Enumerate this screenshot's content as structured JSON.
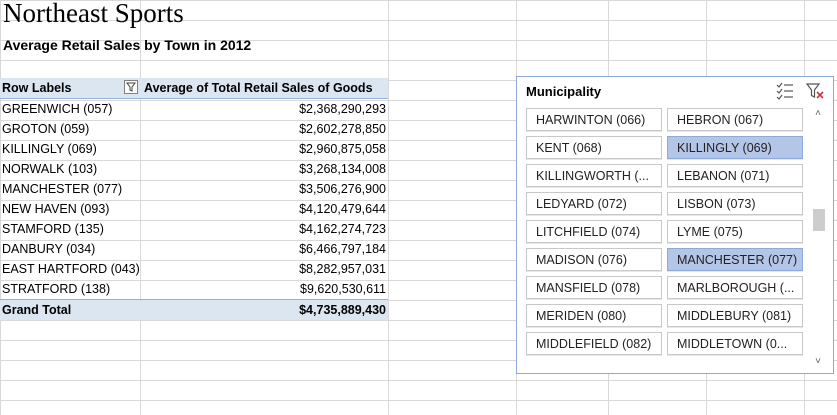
{
  "sheet": {
    "title": "Northeast Sports",
    "subtitle": "Average Retail Sales by Town in 2012"
  },
  "pivot": {
    "row_labels_header": "Row Labels",
    "value_header": "Average of Total Retail Sales of Goods",
    "rows": [
      {
        "label": "GREENWICH (057)",
        "value": "$2,368,290,293"
      },
      {
        "label": "GROTON (059)",
        "value": "$2,602,278,850"
      },
      {
        "label": "KILLINGLY (069)",
        "value": "$2,960,875,058"
      },
      {
        "label": "NORWALK (103)",
        "value": "$3,268,134,008"
      },
      {
        "label": "MANCHESTER (077)",
        "value": "$3,506,276,900"
      },
      {
        "label": "NEW HAVEN (093)",
        "value": "$4,120,479,644"
      },
      {
        "label": "STAMFORD (135)",
        "value": "$4,162,274,723"
      },
      {
        "label": "DANBURY (034)",
        "value": "$6,466,797,184"
      },
      {
        "label": "EAST HARTFORD (043)",
        "value": "$8,282,957,031"
      },
      {
        "label": "STRATFORD (138)",
        "value": "$9,620,530,611"
      }
    ],
    "grand_total_label": "Grand Total",
    "grand_total_value": "$4,735,889,430"
  },
  "slicer": {
    "title": "Municipality",
    "multi_select_icon": "multi-select-icon",
    "clear_filter_icon": "clear-filter-icon",
    "items": [
      {
        "label": "HARWINTON (066)",
        "selected": false
      },
      {
        "label": "HEBRON (067)",
        "selected": false
      },
      {
        "label": "KENT (068)",
        "selected": false
      },
      {
        "label": "KILLINGLY (069)",
        "selected": true
      },
      {
        "label": "KILLINGWORTH (...",
        "selected": false
      },
      {
        "label": "LEBANON (071)",
        "selected": false
      },
      {
        "label": "LEDYARD (072)",
        "selected": false
      },
      {
        "label": "LISBON (073)",
        "selected": false
      },
      {
        "label": "LITCHFIELD (074)",
        "selected": false
      },
      {
        "label": "LYME (075)",
        "selected": false
      },
      {
        "label": "MADISON (076)",
        "selected": false
      },
      {
        "label": "MANCHESTER (077)",
        "selected": true
      },
      {
        "label": "MANSFIELD (078)",
        "selected": false
      },
      {
        "label": "MARLBOROUGH (...",
        "selected": false
      },
      {
        "label": "MERIDEN (080)",
        "selected": false
      },
      {
        "label": "MIDDLEBURY (081)",
        "selected": false
      },
      {
        "label": "MIDDLEFIELD (082)",
        "selected": false
      },
      {
        "label": "MIDDLETOWN (0...",
        "selected": false
      }
    ]
  },
  "colors": {
    "pivot_header_bg": "#dce6f1",
    "slicer_selected_bg": "#b4c6e7",
    "slicer_border": "#8eaadb"
  }
}
